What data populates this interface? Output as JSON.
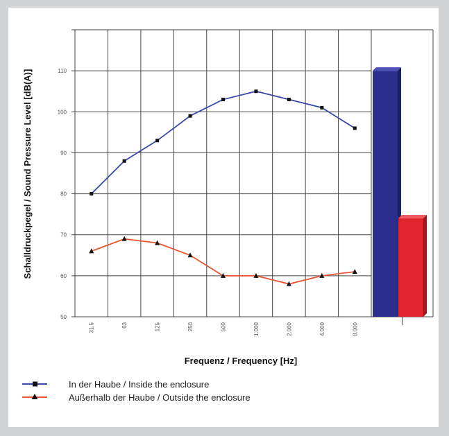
{
  "chart_data": {
    "type": "line",
    "title": "",
    "xlabel": "Frequenz / Frequency  [Hz]",
    "ylabel": "Schalldruckpegel / Sound Pressure Level [dB(A)]",
    "categories": [
      "31,5",
      "63",
      "125",
      "250",
      "500",
      "1.000",
      "2.000",
      "4.000",
      "8.000"
    ],
    "y_ticks": [
      50,
      60,
      70,
      80,
      90,
      100,
      110
    ],
    "ylim": [
      50,
      120
    ],
    "grid": true,
    "legend_position": "bottom-left",
    "series": [
      {
        "name": "In der Haube / Inside the enclosure",
        "color": "#3a4aa8",
        "marker": "square",
        "values": [
          80,
          88,
          93,
          99,
          103,
          105,
          103,
          101,
          96
        ]
      },
      {
        "name": "Außerhalb der Haube / Outside the enclosure",
        "color": "#e8532e",
        "marker": "triangle",
        "values": [
          66,
          69,
          68,
          65,
          60,
          60,
          58,
          60,
          61
        ]
      }
    ],
    "bars": [
      {
        "series": "In der Haube / Inside the enclosure",
        "value": 110,
        "color": "#2b2e8c"
      },
      {
        "series": "Außerhalb der Haube / Outside the enclosure",
        "value": 74,
        "color": "#e0242e"
      }
    ]
  }
}
